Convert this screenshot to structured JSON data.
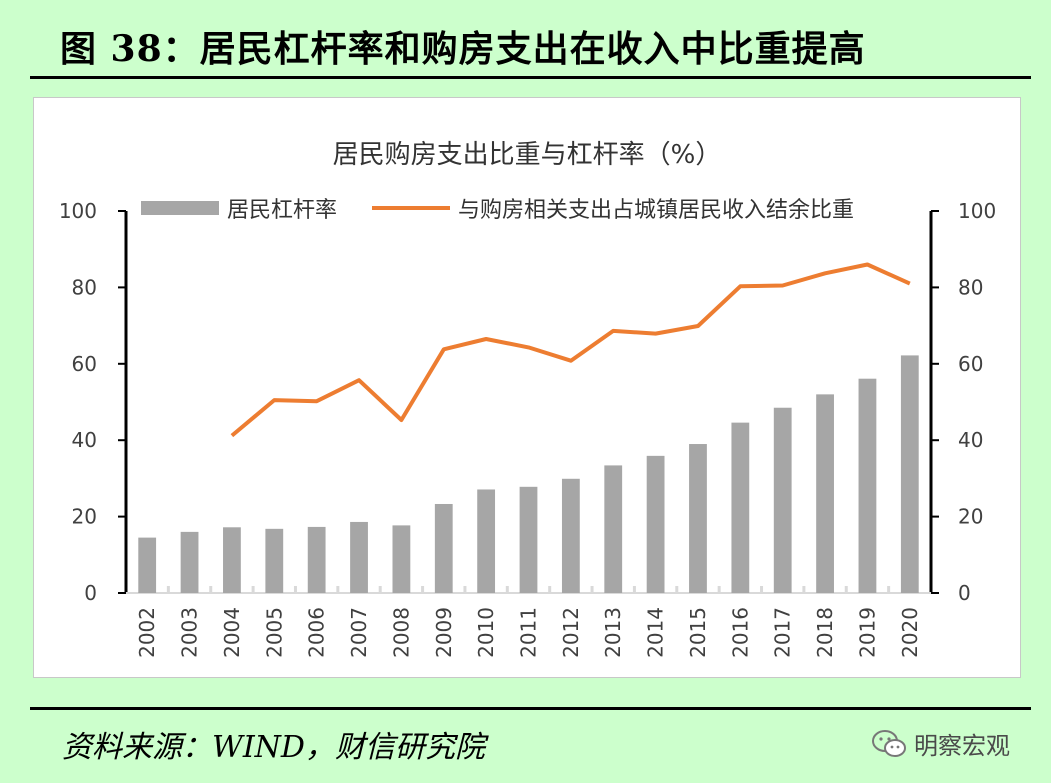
{
  "figure": {
    "title": "图 38：居民杠杆率和购房支出在收入中比重提高",
    "source": "资料来源：WIND，财信研究院",
    "watermark": "明察宏观",
    "watermark_icon": "wechat-icon"
  },
  "chart_data": {
    "type": "bar",
    "title": "居民购房支出比重与杠杆率（%）",
    "categories": [
      "2002",
      "2003",
      "2004",
      "2005",
      "2006",
      "2007",
      "2008",
      "2009",
      "2010",
      "2011",
      "2012",
      "2013",
      "2014",
      "2015",
      "2016",
      "2017",
      "2018",
      "2019",
      "2020"
    ],
    "ylim": [
      0,
      100
    ],
    "yticks": [
      0,
      20,
      40,
      60,
      80,
      100
    ],
    "y2lim": [
      0,
      100
    ],
    "y2ticks": [
      0,
      20,
      40,
      60,
      80,
      100
    ],
    "grid": false,
    "legend_position": "top",
    "series": [
      {
        "name": "居民杠杆率",
        "type": "bar",
        "axis": "left",
        "color": "#a6a6a6",
        "values": [
          14.5,
          16,
          17.2,
          16.8,
          17.3,
          18.6,
          17.7,
          23.3,
          27.1,
          27.8,
          29.9,
          33.4,
          35.9,
          39,
          44.6,
          48.5,
          52,
          56.1,
          62.2
        ]
      },
      {
        "name": "与购房相关支出占城镇居民收入结余比重",
        "type": "line",
        "axis": "right",
        "color": "#ed7d31",
        "values": [
          null,
          null,
          41.2,
          50.5,
          50.2,
          55.7,
          45.3,
          63.8,
          66.5,
          64.3,
          60.8,
          68.6,
          67.9,
          69.9,
          80.3,
          80.5,
          83.7,
          86,
          81
        ]
      }
    ]
  }
}
